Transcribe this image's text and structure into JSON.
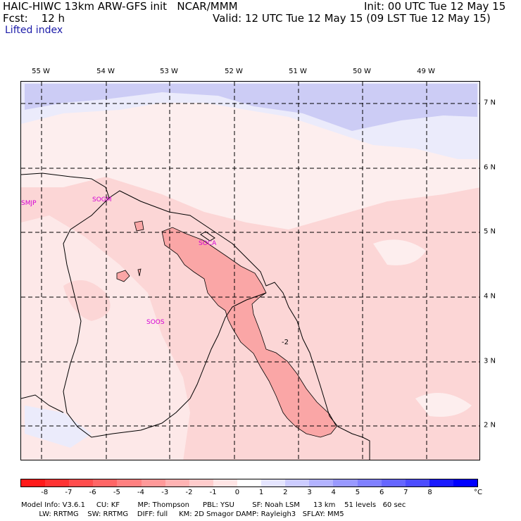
{
  "header": {
    "line1_left": "HAIC-HIWC 13km ARW-GFS init   NCAR/MMM",
    "line1_right": "Init: 00 UTC Tue 12 May 15",
    "line2_left": "Fcst:    12 h",
    "line2_right": "Valid: 12 UTC Tue 12 May 15 (09 LST Tue 12 May 15)",
    "field": "Lifted index"
  },
  "longitude_labels": [
    "55 W",
    "54 W",
    "53 W",
    "52 W",
    "51 W",
    "50 W",
    "49 W"
  ],
  "latitude_labels": [
    "7 N",
    "6 N",
    "5 N",
    "4 N",
    "3 N",
    "2 N"
  ],
  "stations": [
    "SMJP",
    "SOGM",
    "SOCA",
    "SOOS"
  ],
  "contour_label": "-2",
  "colorbar": {
    "colors": [
      "#ff1a1a",
      "#ff3333",
      "#ff4d4d",
      "#ff6666",
      "#ff8080",
      "#ff9999",
      "#ffb3b3",
      "#ffcccc",
      "#ffe5e5",
      "#ffffff",
      "#e5e5ff",
      "#ccccff",
      "#b3b3ff",
      "#9999ff",
      "#8080ff",
      "#6666ff",
      "#4d4dff",
      "#1a1aff",
      "#0000ff"
    ],
    "ticks": [
      "-8",
      "-7",
      "-6",
      "-5",
      "-4",
      "-3",
      "-2",
      "-1",
      "0",
      "1",
      "2",
      "3",
      "4",
      "5",
      "6",
      "7",
      "8"
    ],
    "unit": "°C"
  },
  "model_info": {
    "line1": "Model Info: V3.6.1     CU: KF        MP: Thompson      PBL: YSU        SF: Noah LSM      13 km    51 levels   60 sec",
    "line2": "        LW: RRTMG    SW: RRTMG    DIFF: full     KM: 2D Smagor DAMP: Rayleigh3   SFLAY: MM5"
  }
}
